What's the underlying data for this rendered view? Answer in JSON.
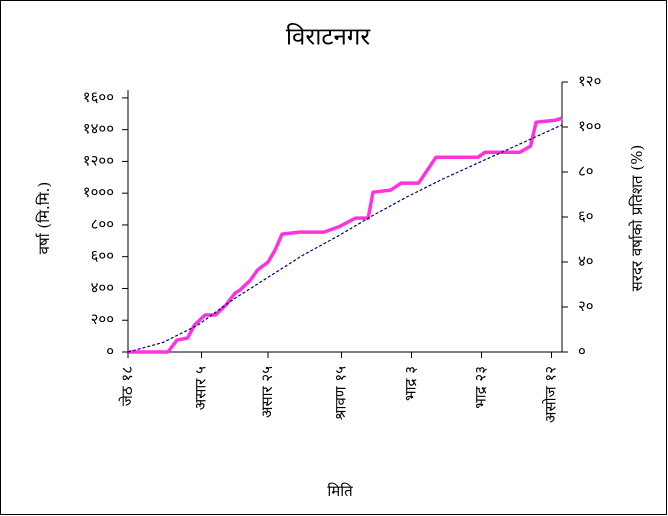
{
  "chart_data": {
    "type": "line",
    "title": "विराटनगर",
    "xlabel": "मिति",
    "ylabel": "वर्षा (मि.मि.)",
    "y2label": "सरदर वर्षाको प्रतिशत (%)",
    "xlim": [
      0,
      124
    ],
    "xticks": [
      {
        "value": 0,
        "label": "जेठ १८"
      },
      {
        "value": 21,
        "label": "असार ५"
      },
      {
        "value": 40,
        "label": "असार २५"
      },
      {
        "value": 61,
        "label": "श्रावण १५"
      },
      {
        "value": 81,
        "label": "भाद्र ३"
      },
      {
        "value": 101,
        "label": "भाद्र २३"
      },
      {
        "value": 121,
        "label": "असोज १२"
      }
    ],
    "ylim": [
      0,
      1700
    ],
    "yticks": [
      {
        "value": 0,
        "label": "०"
      },
      {
        "value": 200,
        "label": "२००"
      },
      {
        "value": 400,
        "label": "४००"
      },
      {
        "value": 600,
        "label": "६००"
      },
      {
        "value": 800,
        "label": "८००"
      },
      {
        "value": 1000,
        "label": "१०००"
      },
      {
        "value": 1200,
        "label": "१२००"
      },
      {
        "value": 1400,
        "label": "१४००"
      },
      {
        "value": 1600,
        "label": "१६००"
      }
    ],
    "y2lim": [
      0,
      120
    ],
    "y2ticks": [
      {
        "value": 0,
        "label": "०"
      },
      {
        "value": 20,
        "label": "२०"
      },
      {
        "value": 40,
        "label": "४०"
      },
      {
        "value": 60,
        "label": "६०"
      },
      {
        "value": 80,
        "label": "८०"
      },
      {
        "value": 100,
        "label": "१००"
      },
      {
        "value": 120,
        "label": "१२०"
      }
    ],
    "series": [
      {
        "color": "#ff33dd",
        "dashed": false,
        "x": [
          0,
          11.4,
          14,
          17,
          19,
          22,
          25,
          28,
          30.6,
          32,
          35,
          37,
          40,
          42,
          44,
          49,
          56,
          60.6,
          65,
          68.6,
          70,
          75,
          78,
          83,
          88,
          100,
          102,
          112,
          115,
          116.6,
          122,
          124
        ],
        "values": [
          0,
          0,
          75,
          88,
          170,
          233,
          233,
          296,
          371,
          390,
          453,
          516,
          566,
          641,
          742,
          755,
          755,
          792,
          843,
          843,
          1006,
          1019,
          1063,
          1063,
          1226,
          1226,
          1258,
          1258,
          1296,
          1447,
          1459,
          1472
        ]
      },
      {
        "color": "#000080",
        "dashed": true,
        "x": [
          0,
          10,
          20,
          30,
          40,
          50,
          60,
          70,
          80,
          90,
          100,
          110,
          124
        ],
        "values": [
          0,
          60,
          170,
          330,
          470,
          610,
          730,
          860,
          980,
          1090,
          1190,
          1290,
          1430
        ]
      }
    ]
  }
}
